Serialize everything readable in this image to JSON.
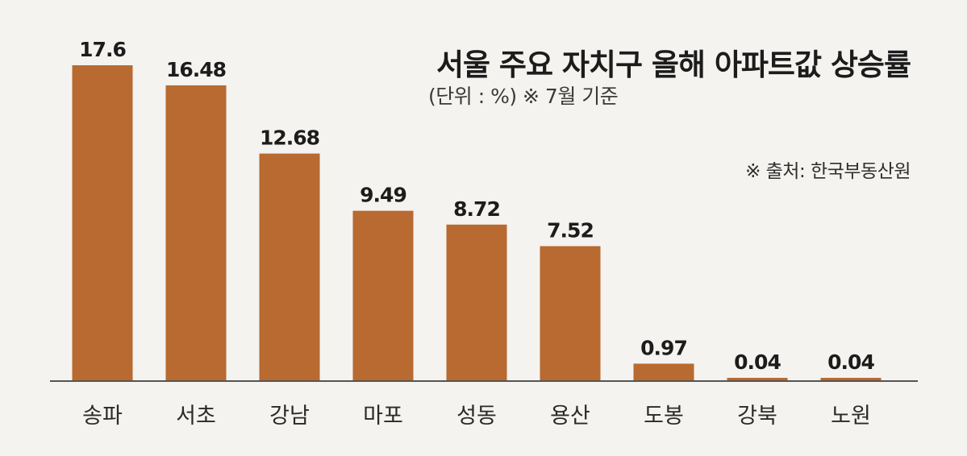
{
  "chart_data": {
    "type": "bar",
    "title": "서울 주요 자치구 올해 아파트값 상승률",
    "subtitle": "(단위 : %)  ※ 7월 기준",
    "source": "※ 출처: 한국부동산원",
    "categories": [
      "송파",
      "서초",
      "강남",
      "마포",
      "성동",
      "용산",
      "도봉",
      "강북",
      "노원"
    ],
    "values": [
      17.6,
      16.48,
      12.68,
      9.49,
      8.72,
      7.52,
      0.97,
      0.04,
      0.04
    ],
    "value_labels": [
      "17.6",
      "16.48",
      "12.68",
      "9.49",
      "8.72",
      "7.52",
      "0.97",
      "0.04",
      "0.04"
    ],
    "xlabel": "",
    "ylabel": "",
    "ylim": [
      0,
      17.6
    ],
    "grid": false,
    "legend": "none",
    "bar_color": "#b86a30"
  }
}
